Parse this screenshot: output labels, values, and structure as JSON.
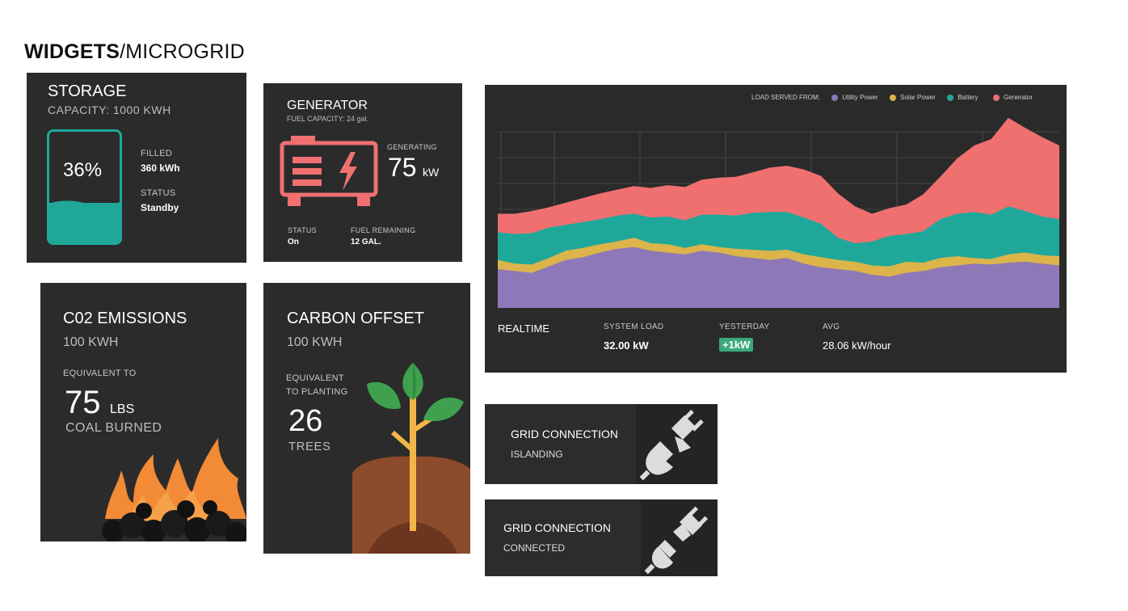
{
  "header": {
    "title_bold": "WIDGETS",
    "title_light": "/MICROGRID"
  },
  "colors": {
    "card_bg": "#2b2b2b",
    "teal": "#1fa89a",
    "coral": "#f07070",
    "purple": "#8e78b8",
    "yellow": "#dcb44a",
    "orange": "#f28a36",
    "green": "#3fa14e",
    "soil": "#8c4b2a",
    "badge": "#3aa87a"
  },
  "storage": {
    "title": "STORAGE",
    "capacity": "CAPACITY: 1000 KWH",
    "percent": "36%",
    "fill_fraction": 0.36,
    "filled_label": "FILLED",
    "filled_value": "360 kWh",
    "status_label": "STATUS",
    "status_value": "Standby",
    "icon": "battery-icon"
  },
  "generator": {
    "title": "GENERATOR",
    "fuel_capacity": "FUEL CAPACITY: 24 gal.",
    "generating_label": "GENERATING",
    "generating_value": "75",
    "generating_unit": "kW",
    "status_label": "STATUS",
    "status_value": "On",
    "fuel_label": "FUEL REMAINING",
    "fuel_value": "12 GAL.",
    "icon": "generator-icon"
  },
  "emissions": {
    "title": "C02 EMISSIONS",
    "subtitle": "100 KWH",
    "equivalent_label": "EQUIVALENT TO",
    "value": "75",
    "unit": "LBS",
    "caption": "COAL BURNED",
    "icon": "fire-coal-icon"
  },
  "offset": {
    "title": "CARBON OFFSET",
    "subtitle": "100 KWH",
    "equivalent_line1": "EQUIVALENT",
    "equivalent_line2": "TO PLANTING",
    "value": "26",
    "caption": "TREES",
    "icon": "tree-sapling-icon"
  },
  "load": {
    "legend_title": "LOAD SERVED FROM:",
    "legend": [
      "Utility Power",
      "Solar Power",
      "Battery",
      "Generator"
    ],
    "realtime_label": "REALTIME",
    "system_load_label": "SYSTEM LOAD",
    "system_load_value": "32.00 kW",
    "yesterday_label": "YESTERDAY",
    "yesterday_value": "+1kW",
    "avg_label": "AVG",
    "avg_value": "28.06 kW/hour"
  },
  "grid_islanding": {
    "title": "GRID CONNECTION",
    "status": "ISLANDING",
    "icon": "unplugged-icon"
  },
  "grid_connected": {
    "title": "GRID CONNECTION",
    "status": "CONNECTED",
    "icon": "plugged-icon"
  },
  "chart_data": {
    "type": "area",
    "stacked": true,
    "x_count": 34,
    "grid": true,
    "legend_position": "top-right",
    "series": [
      {
        "name": "Utility Power",
        "values": [
          42,
          40,
          38,
          45,
          52,
          55,
          60,
          64,
          66,
          62,
          60,
          58,
          62,
          60,
          56,
          54,
          52,
          54,
          48,
          44,
          42,
          40,
          36,
          34,
          38,
          40,
          44,
          46,
          48,
          47,
          49,
          50,
          48,
          46
        ]
      },
      {
        "name": "Solar Power",
        "values": [
          10,
          8,
          9,
          9,
          10,
          10,
          9,
          8,
          10,
          8,
          9,
          7,
          7,
          6,
          8,
          9,
          10,
          9,
          10,
          11,
          10,
          10,
          10,
          11,
          12,
          9,
          10,
          10,
          6,
          6,
          9,
          10,
          9,
          10
        ]
      },
      {
        "name": "Battery",
        "values": [
          30,
          32,
          34,
          33,
          28,
          28,
          27,
          28,
          26,
          28,
          30,
          30,
          32,
          35,
          36,
          40,
          42,
          41,
          40,
          36,
          24,
          20,
          26,
          33,
          30,
          34,
          42,
          46,
          50,
          48,
          52,
          45,
          42,
          40
        ]
      },
      {
        "name": "Generator",
        "values": [
          20,
          22,
          24,
          22,
          24,
          26,
          28,
          28,
          30,
          32,
          34,
          36,
          38,
          40,
          42,
          44,
          48,
          50,
          52,
          52,
          48,
          40,
          30,
          30,
          32,
          40,
          46,
          60,
          72,
          82,
          96,
          90,
          86,
          80
        ]
      }
    ]
  }
}
